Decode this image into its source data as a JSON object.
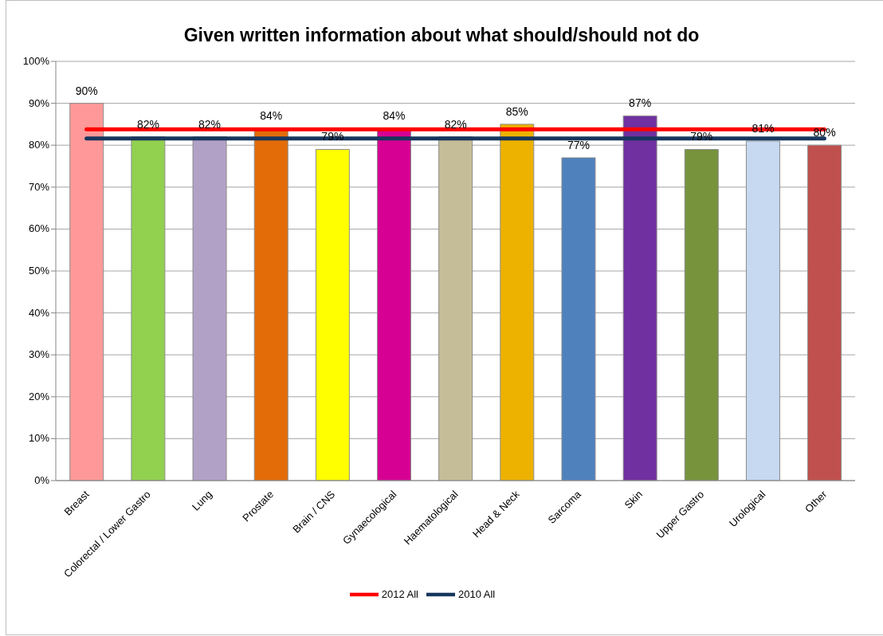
{
  "chart_data": {
    "type": "bar",
    "title": "Given written information about what should/should not do",
    "categories": [
      "Breast",
      "Colorectal / Lower Gastro",
      "Lung",
      "Prostate",
      "Brain / CNS",
      "Gynaecological",
      "Haematological",
      "Head & Neck",
      "Sarcoma",
      "Skin",
      "Upper Gastro",
      "Urological",
      "Other"
    ],
    "series": [
      {
        "colors": [
          "#ff9999",
          "#92d050",
          "#b2a1c7",
          "#e36c09",
          "#ffff00",
          "#d60093",
          "#c4bd97",
          "#edb200",
          "#4f81bd",
          "#7030a0",
          "#77933c",
          "#c6d9f1",
          "#c0504d"
        ],
        "values": [
          90,
          82,
          82,
          84,
          79,
          84,
          82,
          85,
          77,
          87,
          79,
          81,
          80
        ],
        "value_labels": [
          "90%",
          "82%",
          "82%",
          "84%",
          "79%",
          "84%",
          "82%",
          "85%",
          "77%",
          "87%",
          "79%",
          "81%",
          "80%"
        ]
      },
      {
        "type": "line",
        "name": "2012 All",
        "color": "#ff0000",
        "values": [
          83.8,
          83.8,
          83.8,
          83.8,
          83.8,
          83.8,
          83.8,
          83.8,
          83.8,
          83.8,
          83.8,
          83.8,
          83.8
        ]
      },
      {
        "type": "line",
        "name": "2010 All",
        "color": "#17365d",
        "values": [
          81.6,
          81.6,
          81.6,
          81.6,
          81.6,
          81.6,
          81.6,
          81.6,
          81.6,
          81.6,
          81.6,
          81.6,
          81.6
        ]
      }
    ],
    "ylim": [
      0,
      100
    ],
    "yticks": [
      {
        "value": 0,
        "label": "0%"
      },
      {
        "value": 10,
        "label": "10%"
      },
      {
        "value": 20,
        "label": "20%"
      },
      {
        "value": 30,
        "label": "30%"
      },
      {
        "value": 40,
        "label": "40%"
      },
      {
        "value": 50,
        "label": "50%"
      },
      {
        "value": 60,
        "label": "60%"
      },
      {
        "value": 70,
        "label": "70%"
      },
      {
        "value": 80,
        "label": "80%"
      },
      {
        "value": 90,
        "label": "90%"
      },
      {
        "value": 100,
        "label": "100%"
      }
    ],
    "grid": "y",
    "legend": "bottom"
  }
}
